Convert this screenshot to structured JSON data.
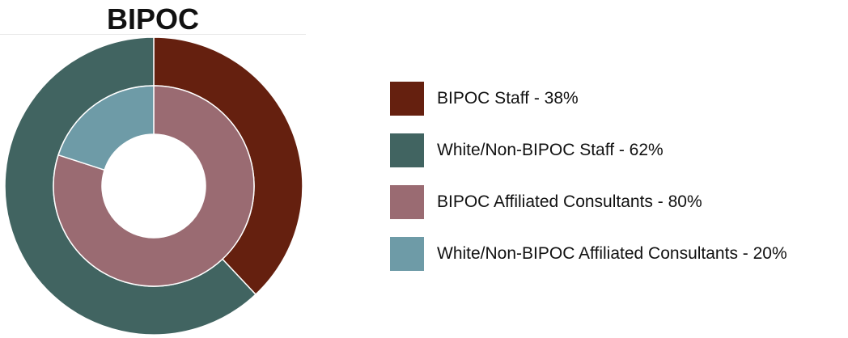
{
  "chart_data": {
    "type": "donut",
    "title": "BIPOC",
    "rings": [
      {
        "name": "Staff",
        "slices": [
          {
            "label": "BIPOC Staff - 38%",
            "value": 38,
            "color": "#65200f"
          },
          {
            "label": "White/Non-BIPOC Staff - 62%",
            "value": 62,
            "color": "#416461"
          }
        ]
      },
      {
        "name": "Affiliated Consultants",
        "slices": [
          {
            "label": "BIPOC Affiliated Consultants - 80%",
            "value": 80,
            "color": "#9a6b72"
          },
          {
            "label": "White/Non-BIPOC Affiliated Consultants - 20%",
            "value": 20,
            "color": "#6e9ba7"
          }
        ]
      }
    ],
    "legend_position": "right"
  },
  "legend": [
    {
      "label": "BIPOC Staff - 38%",
      "color": "#65200f"
    },
    {
      "label": "White/Non-BIPOC Staff - 62%",
      "color": "#416461"
    },
    {
      "label": "BIPOC Affiliated Consultants - 80%",
      "color": "#9a6b72"
    },
    {
      "label": "White/Non-BIPOC Affiliated Consultants - 20%",
      "color": "#6e9ba7"
    }
  ]
}
